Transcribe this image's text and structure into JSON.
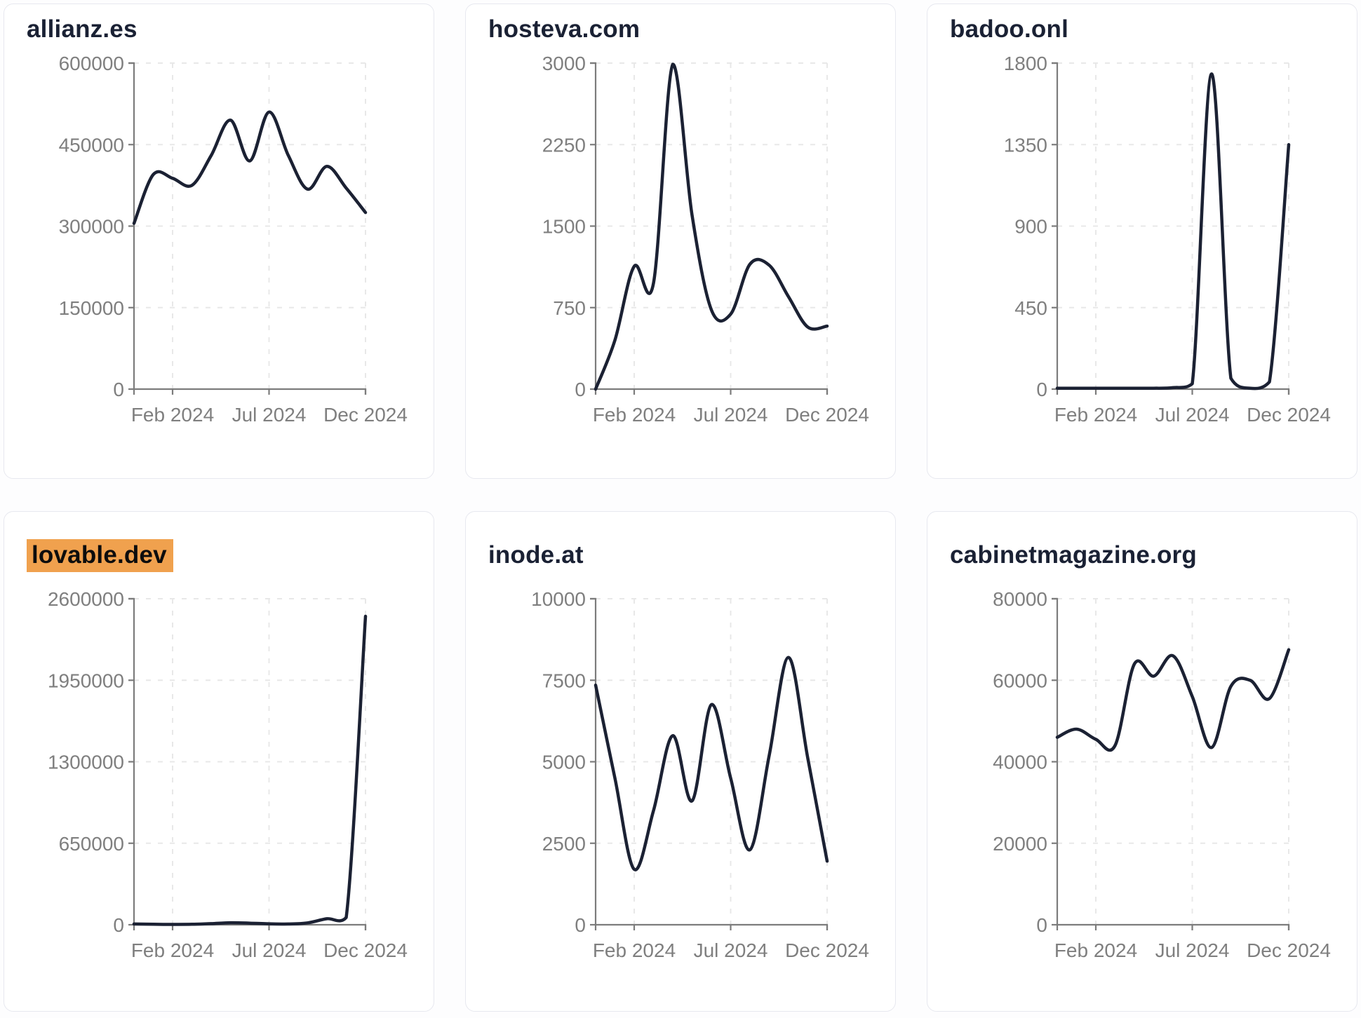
{
  "page": {
    "background": "#fdfdfe",
    "card_background": "#ffffff",
    "card_border_color": "#e7e8ef"
  },
  "colors": {
    "line": "#1b2133",
    "title": "#1a2134",
    "axis": "#7c7c7c",
    "tick_label": "#7f7f7f",
    "grid": "#e8e8e8",
    "highlight_bg": "#f0a14e",
    "highlight_text": "#0d0d0d"
  },
  "x_axis": {
    "months": [
      "Dec 2023",
      "Jan 2024",
      "Feb 2024",
      "Mar 2024",
      "Apr 2024",
      "May 2024",
      "Jun 2024",
      "Jul 2024",
      "Aug 2024",
      "Sep 2024",
      "Oct 2024",
      "Nov 2024",
      "Dec 2024"
    ],
    "tick_labels": [
      "Feb 2024",
      "Jul 2024",
      "Dec 2024"
    ],
    "tick_month_indices": [
      2,
      7,
      12
    ]
  },
  "chart_data": [
    {
      "type": "line",
      "title": "allianz.es",
      "highlighted": false,
      "x": [
        "Dec 2023",
        "Jan 2024",
        "Feb 2024",
        "Mar 2024",
        "Apr 2024",
        "May 2024",
        "Jun 2024",
        "Jul 2024",
        "Aug 2024",
        "Sep 2024",
        "Oct 2024",
        "Nov 2024",
        "Dec 2024"
      ],
      "values": [
        305000,
        395000,
        388000,
        375000,
        430000,
        495000,
        420000,
        510000,
        430000,
        368000,
        410000,
        370000,
        325000
      ],
      "ylim": [
        0,
        600000
      ],
      "y_ticks": [
        0,
        150000,
        300000,
        450000,
        600000
      ],
      "x_tick_labels": [
        "Feb 2024",
        "Jul 2024",
        "Dec 2024"
      ],
      "x_tick_indices": [
        2,
        7,
        12
      ],
      "grid": "dashed"
    },
    {
      "type": "line",
      "title": "hosteva.com",
      "highlighted": false,
      "x": [
        "Dec 2023",
        "Jan 2024",
        "Feb 2024",
        "Mar 2024",
        "Apr 2024",
        "May 2024",
        "Jun 2024",
        "Jul 2024",
        "Aug 2024",
        "Sep 2024",
        "Oct 2024",
        "Nov 2024",
        "Dec 2024"
      ],
      "values": [
        0,
        450,
        1130,
        975,
        2990,
        1600,
        730,
        690,
        1150,
        1140,
        850,
        570,
        580
      ],
      "ylim": [
        0,
        3000
      ],
      "y_ticks": [
        0,
        750,
        1500,
        2250,
        3000
      ],
      "x_tick_labels": [
        "Feb 2024",
        "Jul 2024",
        "Dec 2024"
      ],
      "x_tick_indices": [
        2,
        7,
        12
      ],
      "grid": "dashed"
    },
    {
      "type": "line",
      "title": "badoo.onl",
      "highlighted": false,
      "x": [
        "Dec 2023",
        "Jan 2024",
        "Feb 2024",
        "Mar 2024",
        "Apr 2024",
        "May 2024",
        "Jun 2024",
        "Jul 2024",
        "Aug 2024",
        "Sep 2024",
        "Oct 2024",
        "Nov 2024",
        "Dec 2024"
      ],
      "values": [
        5,
        5,
        5,
        5,
        5,
        5,
        8,
        30,
        1740,
        60,
        5,
        40,
        1350
      ],
      "ylim": [
        0,
        1800
      ],
      "y_ticks": [
        0,
        450,
        900,
        1350,
        1800
      ],
      "x_tick_labels": [
        "Feb 2024",
        "Jul 2024",
        "Dec 2024"
      ],
      "x_tick_indices": [
        2,
        7,
        12
      ],
      "grid": "dashed"
    },
    {
      "type": "line",
      "title": "lovable.dev",
      "highlighted": true,
      "x": [
        "Dec 2023",
        "Jan 2024",
        "Feb 2024",
        "Mar 2024",
        "Apr 2024",
        "May 2024",
        "Jun 2024",
        "Jul 2024",
        "Aug 2024",
        "Sep 2024",
        "Oct 2024",
        "Nov 2024",
        "Dec 2024"
      ],
      "values": [
        6000,
        4000,
        3000,
        4000,
        9000,
        16000,
        13000,
        8000,
        6000,
        15000,
        48000,
        58000,
        2460000
      ],
      "ylim": [
        0,
        2600000
      ],
      "y_ticks": [
        0,
        650000,
        1300000,
        1950000,
        2600000
      ],
      "x_tick_labels": [
        "Feb 2024",
        "Jul 2024",
        "Dec 2024"
      ],
      "x_tick_indices": [
        2,
        7,
        12
      ],
      "grid": "dashed"
    },
    {
      "type": "line",
      "title": "inode.at",
      "highlighted": false,
      "x": [
        "Dec 2023",
        "Jan 2024",
        "Feb 2024",
        "Mar 2024",
        "Apr 2024",
        "May 2024",
        "Jun 2024",
        "Jul 2024",
        "Aug 2024",
        "Sep 2024",
        "Oct 2024",
        "Nov 2024",
        "Dec 2024"
      ],
      "values": [
        7350,
        4500,
        1700,
        3500,
        5800,
        3800,
        6750,
        4500,
        2300,
        5200,
        8200,
        5100,
        1950
      ],
      "ylim": [
        0,
        10000
      ],
      "y_ticks": [
        0,
        2500,
        5000,
        7500,
        10000
      ],
      "x_tick_labels": [
        "Feb 2024",
        "Jul 2024",
        "Dec 2024"
      ],
      "x_tick_indices": [
        2,
        7,
        12
      ],
      "grid": "dashed"
    },
    {
      "type": "line",
      "title": "cabinetmagazine.org",
      "highlighted": false,
      "x": [
        "Dec 2023",
        "Jan 2024",
        "Feb 2024",
        "Mar 2024",
        "Apr 2024",
        "May 2024",
        "Jun 2024",
        "Jul 2024",
        "Aug 2024",
        "Sep 2024",
        "Oct 2024",
        "Nov 2024",
        "Dec 2024"
      ],
      "values": [
        46000,
        48000,
        45500,
        44000,
        64000,
        61000,
        66000,
        56000,
        43500,
        58500,
        60000,
        55500,
        67500
      ],
      "ylim": [
        0,
        80000
      ],
      "y_ticks": [
        0,
        20000,
        40000,
        60000,
        80000
      ],
      "x_tick_labels": [
        "Feb 2024",
        "Jul 2024",
        "Dec 2024"
      ],
      "x_tick_indices": [
        2,
        7,
        12
      ],
      "grid": "dashed"
    }
  ]
}
